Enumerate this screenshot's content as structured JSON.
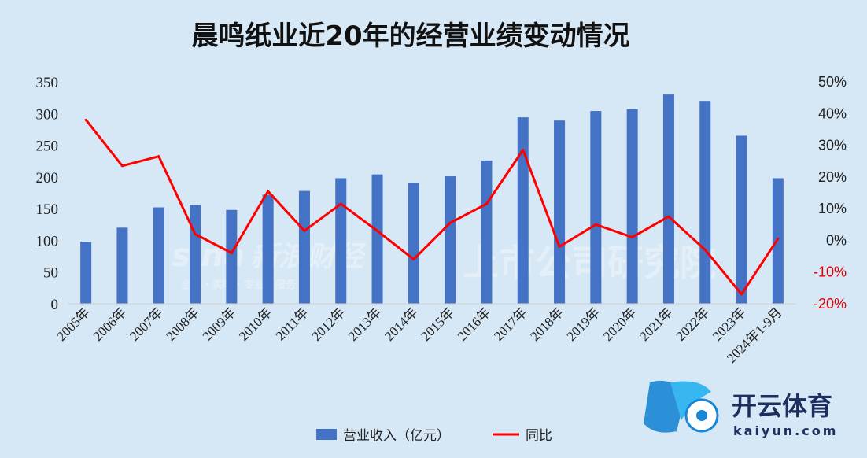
{
  "chart_data": {
    "type": "bar",
    "title": "晨鸣纸业近20年的经营业绩变动情况",
    "categories": [
      "2005年",
      "2006年",
      "2007年",
      "2008年",
      "2009年",
      "2010年",
      "2011年",
      "2012年",
      "2013年",
      "2014年",
      "2015年",
      "2016年",
      "2017年",
      "2018年",
      "2019年",
      "2020年",
      "2021年",
      "2022年",
      "2023年",
      "2024年1-9月"
    ],
    "series": [
      {
        "name": "营业收入（亿元）",
        "type": "bar",
        "axis": "left",
        "color": "#4472c4",
        "values": [
          98,
          120,
          152,
          156,
          148,
          172,
          178,
          198,
          204,
          191,
          201,
          226,
          294,
          289,
          304,
          307,
          330,
          320,
          265,
          198
        ]
      },
      {
        "name": "同比",
        "type": "line",
        "axis": "right",
        "color": "#ff0000",
        "unit": "%",
        "values": [
          38,
          23.5,
          26.5,
          2,
          -4,
          15.5,
          3,
          11.5,
          3,
          -6,
          5.5,
          11.5,
          28.5,
          -2,
          5,
          1,
          7.5,
          -3,
          -17,
          0.5
        ]
      }
    ],
    "y_left": {
      "min": 0,
      "max": 350,
      "ticks": [
        "0",
        "50",
        "100",
        "150",
        "200",
        "250",
        "300",
        "350"
      ]
    },
    "y_right": {
      "min": -20,
      "max": 50,
      "ticks": [
        "50%",
        "40%",
        "30%",
        "20%",
        "10%",
        "0%",
        "-10%",
        "-20%"
      ]
    },
    "grid": false,
    "legend": "bottom-center"
  },
  "watermarks": {
    "sina": "sina",
    "sina_cn": "新浪财经",
    "sina_sub": "全球 · 实时 · 专业 · 服务",
    "company": "上市公司研究院"
  },
  "logo": {
    "name": "开云体育",
    "domain": "kaiyun.com"
  }
}
